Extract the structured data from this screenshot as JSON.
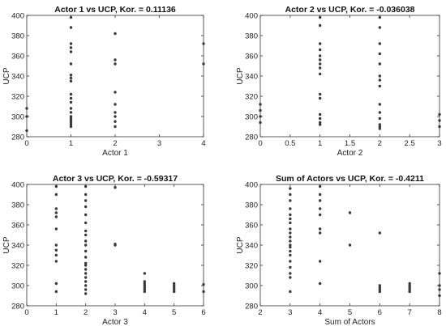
{
  "chart_data": [
    {
      "type": "scatter",
      "title": "Actor 1 vs UCP, Kor. = 0.11136",
      "xlabel": "Actor 1",
      "ylabel": "UCP",
      "xlim": [
        0,
        4
      ],
      "ylim": [
        280,
        400
      ],
      "xticks": [
        0,
        1,
        2,
        3,
        4
      ],
      "xtick_labels": [
        "0",
        "1",
        "2",
        "3",
        "4"
      ],
      "yticks": [
        280,
        300,
        320,
        340,
        360,
        380,
        400
      ],
      "ytick_labels": [
        "280",
        "300",
        "320",
        "340",
        "360",
        "380",
        "400"
      ],
      "grid": false,
      "points": [
        [
          0,
          300
        ],
        [
          0,
          308
        ],
        [
          0,
          286
        ],
        [
          1,
          398
        ],
        [
          1,
          388
        ],
        [
          1,
          372
        ],
        [
          1,
          368
        ],
        [
          1,
          364
        ],
        [
          1,
          352
        ],
        [
          1,
          341
        ],
        [
          1,
          338
        ],
        [
          1,
          335
        ],
        [
          1,
          322
        ],
        [
          1,
          318
        ],
        [
          1,
          314
        ],
        [
          1,
          308
        ],
        [
          1,
          304
        ],
        [
          1,
          300
        ],
        [
          1,
          298
        ],
        [
          1,
          296
        ],
        [
          1,
          294
        ],
        [
          1,
          292
        ],
        [
          1,
          290
        ],
        [
          2,
          382
        ],
        [
          2,
          356
        ],
        [
          2,
          352
        ],
        [
          2,
          324
        ],
        [
          2,
          312
        ],
        [
          2,
          304
        ],
        [
          2,
          300
        ],
        [
          2,
          295
        ],
        [
          2,
          290
        ],
        [
          4,
          372
        ],
        [
          4,
          352
        ]
      ]
    },
    {
      "type": "scatter",
      "title": "Actor 2 vs UCP, Kor. = -0.036038",
      "xlabel": "Actor 2",
      "ylabel": "UCP",
      "xlim": [
        0,
        3
      ],
      "ylim": [
        280,
        400
      ],
      "xticks": [
        0,
        0.5,
        1,
        1.5,
        2,
        2.5,
        3
      ],
      "xtick_labels": [
        "0",
        "0.5",
        "1",
        "1.5",
        "2",
        "2.5",
        "3"
      ],
      "yticks": [
        280,
        300,
        320,
        340,
        360,
        380,
        400
      ],
      "ytick_labels": [
        "280",
        "300",
        "320",
        "340",
        "360",
        "380",
        "400"
      ],
      "grid": false,
      "points": [
        [
          0,
          312
        ],
        [
          0,
          306
        ],
        [
          0,
          300
        ],
        [
          0,
          294
        ],
        [
          1,
          398
        ],
        [
          1,
          390
        ],
        [
          1,
          372
        ],
        [
          1,
          366
        ],
        [
          1,
          360
        ],
        [
          1,
          356
        ],
        [
          1,
          352
        ],
        [
          1,
          348
        ],
        [
          1,
          342
        ],
        [
          1,
          322
        ],
        [
          1,
          318
        ],
        [
          1,
          302
        ],
        [
          1,
          298
        ],
        [
          1,
          294
        ],
        [
          1,
          292
        ],
        [
          2,
          398
        ],
        [
          2,
          388
        ],
        [
          2,
          372
        ],
        [
          2,
          362
        ],
        [
          2,
          352
        ],
        [
          2,
          340
        ],
        [
          2,
          336
        ],
        [
          2,
          330
        ],
        [
          2,
          312
        ],
        [
          2,
          304
        ],
        [
          2,
          298
        ],
        [
          2,
          292
        ],
        [
          2,
          290
        ],
        [
          2,
          288
        ],
        [
          3,
          302
        ],
        [
          3,
          296
        ],
        [
          3,
          290
        ]
      ]
    },
    {
      "type": "scatter",
      "title": "Actor 3 vs UCP, Kor. = -0.59317",
      "xlabel": "Actor 3",
      "ylabel": "UCP",
      "xlim": [
        0,
        6
      ],
      "ylim": [
        280,
        400
      ],
      "xticks": [
        0,
        1,
        2,
        3,
        4,
        5,
        6
      ],
      "xtick_labels": [
        "0",
        "1",
        "2",
        "3",
        "4",
        "5",
        "6"
      ],
      "yticks": [
        280,
        300,
        320,
        340,
        360,
        380,
        400
      ],
      "ytick_labels": [
        "280",
        "300",
        "320",
        "340",
        "360",
        "380",
        "400"
      ],
      "grid": false,
      "points": [
        [
          1,
          398
        ],
        [
          1,
          390
        ],
        [
          1,
          376
        ],
        [
          1,
          372
        ],
        [
          1,
          368
        ],
        [
          1,
          356
        ],
        [
          1,
          340
        ],
        [
          1,
          335
        ],
        [
          1,
          330
        ],
        [
          1,
          324
        ],
        [
          1,
          302
        ],
        [
          1,
          294
        ],
        [
          2,
          398
        ],
        [
          2,
          390
        ],
        [
          2,
          384
        ],
        [
          2,
          378
        ],
        [
          2,
          370
        ],
        [
          2,
          362
        ],
        [
          2,
          354
        ],
        [
          2,
          350
        ],
        [
          2,
          344
        ],
        [
          2,
          340
        ],
        [
          2,
          334
        ],
        [
          2,
          328
        ],
        [
          2,
          322
        ],
        [
          2,
          320
        ],
        [
          2,
          316
        ],
        [
          2,
          312
        ],
        [
          2,
          308
        ],
        [
          2,
          304
        ],
        [
          2,
          300
        ],
        [
          2,
          296
        ],
        [
          2,
          292
        ],
        [
          3,
          397
        ],
        [
          3,
          341
        ],
        [
          3,
          340
        ],
        [
          4,
          312
        ],
        [
          4,
          304
        ],
        [
          4,
          302
        ],
        [
          4,
          300
        ],
        [
          4,
          298
        ],
        [
          4,
          296
        ],
        [
          4,
          294
        ],
        [
          5,
          302
        ],
        [
          5,
          300
        ],
        [
          5,
          298
        ],
        [
          5,
          296
        ],
        [
          5,
          294
        ],
        [
          6,
          301
        ],
        [
          6,
          294
        ]
      ]
    },
    {
      "type": "scatter",
      "title": "Sum of Actors vs UCP, Kor. = -0.4211",
      "xlabel": "Sum of Actors",
      "ylabel": "UCP",
      "xlim": [
        2,
        8
      ],
      "ylim": [
        280,
        400
      ],
      "xticks": [
        2,
        3,
        4,
        5,
        6,
        7,
        8
      ],
      "xtick_labels": [
        "2",
        "3",
        "4",
        "5",
        "6",
        "7",
        "8"
      ],
      "yticks": [
        280,
        300,
        320,
        340,
        360,
        380,
        400
      ],
      "ytick_labels": [
        "280",
        "300",
        "320",
        "340",
        "360",
        "380",
        "400"
      ],
      "grid": false,
      "points": [
        [
          3,
          396
        ],
        [
          3,
          390
        ],
        [
          3,
          384
        ],
        [
          3,
          376
        ],
        [
          3,
          370
        ],
        [
          3,
          366
        ],
        [
          3,
          362
        ],
        [
          3,
          356
        ],
        [
          3,
          352
        ],
        [
          3,
          348
        ],
        [
          3,
          344
        ],
        [
          3,
          340
        ],
        [
          3,
          338
        ],
        [
          3,
          334
        ],
        [
          3,
          330
        ],
        [
          3,
          324
        ],
        [
          3,
          318
        ],
        [
          3,
          312
        ],
        [
          3,
          308
        ],
        [
          3,
          294
        ],
        [
          4,
          398
        ],
        [
          4,
          390
        ],
        [
          4,
          384
        ],
        [
          4,
          376
        ],
        [
          4,
          370
        ],
        [
          4,
          356
        ],
        [
          4,
          352
        ],
        [
          4,
          324
        ],
        [
          4,
          302
        ],
        [
          5,
          372
        ],
        [
          5,
          340
        ],
        [
          6,
          352
        ],
        [
          6,
          300
        ],
        [
          6,
          298
        ],
        [
          6,
          296
        ],
        [
          6,
          294
        ],
        [
          7,
          302
        ],
        [
          7,
          300
        ],
        [
          7,
          298
        ],
        [
          7,
          296
        ],
        [
          7,
          294
        ],
        [
          8,
          312
        ],
        [
          8,
          300
        ],
        [
          8,
          296
        ],
        [
          8,
          290
        ]
      ]
    }
  ]
}
